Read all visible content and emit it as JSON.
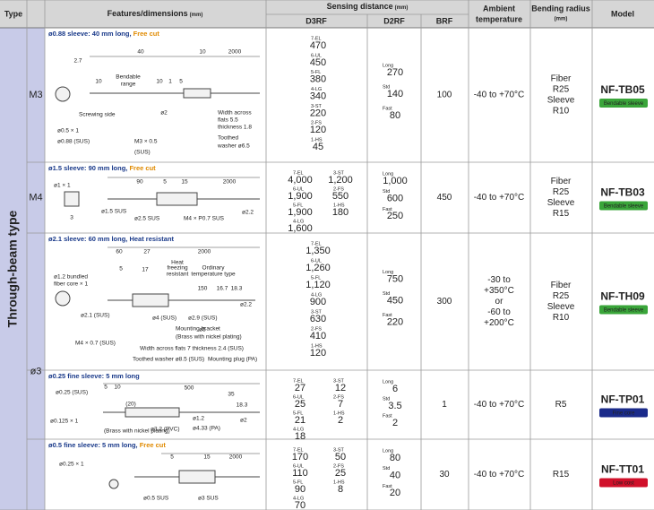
{
  "header": {
    "type": "Type",
    "features": "Features/dimensions",
    "features_unit": "(mm)",
    "sensing": "Sensing distance",
    "sensing_unit": "(mm)",
    "d3rf": "D3RF",
    "d2rf": "D2RF",
    "brf": "BRF",
    "ambient": [
      "Ambient",
      "temperature"
    ],
    "bending": [
      "Bending radius",
      "(mm)"
    ],
    "model": "Model"
  },
  "group_label": "Through-beam type",
  "rows": [
    {
      "size": "M3",
      "sleeve": "ø0.88 sleeve: 40 mm long, ",
      "tag": "Free cut",
      "labels": [
        "40",
        "10",
        "2000",
        "2.7",
        "10",
        "Bendable",
        "range",
        "10",
        "1",
        "5",
        "Screwing side",
        "ø2",
        "ø0.5 × 1",
        "ø0.88 (SUS)",
        "M3 × 0.5",
        "(SUS)",
        "Width across",
        "flats 5.5",
        "thickness 1.8",
        "Toothed",
        "washer ø6.5"
      ],
      "d3rf": [
        [
          [
            "7-EL",
            "470"
          ],
          [
            "6-UL",
            "450"
          ],
          [
            "5-FL",
            "380"
          ],
          [
            "4-LG",
            "340"
          ],
          [
            "3-ST",
            "220"
          ],
          [
            "2-FS",
            "120"
          ],
          [
            "1-HS",
            "45"
          ]
        ]
      ],
      "d2rf": [
        [
          "Long",
          "270"
        ],
        [
          "Std",
          "140"
        ],
        [
          "Fast",
          "80"
        ]
      ],
      "brf": "100",
      "ambient": [
        "-40 to +70°C"
      ],
      "bending": [
        "Fiber",
        "R25",
        "Sleeve",
        "R10"
      ],
      "model": "NF-TB05",
      "badge": "Bendable sleeve",
      "badge_color": "#3aa53a"
    },
    {
      "size": "M4",
      "sleeve": "ø1.5 sleeve: 90 mm long, ",
      "tag": "Free cut",
      "labels": [
        "ø1 × 1",
        "90",
        "5",
        "15",
        "2000",
        "3",
        "ø1.5 SUS",
        "ø2.5 SUS",
        "M4 × P0.7 SUS",
        "ø2.2"
      ],
      "d3rf": [
        [
          [
            "7-EL",
            "4,000"
          ],
          [
            "6-UL",
            "1,900"
          ],
          [
            "5-FL",
            "1,900"
          ],
          [
            "4-LG",
            "1,600"
          ]
        ],
        [
          [
            "3-ST",
            "1,200"
          ],
          [
            "2-FS",
            "550"
          ],
          [
            "1-HS",
            "180"
          ]
        ]
      ],
      "d2rf": [
        [
          "Long",
          "1,000"
        ],
        [
          "Std",
          "600"
        ],
        [
          "Fast",
          "250"
        ]
      ],
      "brf": "450",
      "ambient": [
        "-40 to +70°C"
      ],
      "bending": [
        "Fiber",
        "R25",
        "Sleeve",
        "R15"
      ],
      "model": "NF-TB03",
      "badge": "Bendable sleeve",
      "badge_color": "#3aa53a"
    },
    {
      "size": "ø3",
      "sleeve": "ø2.1 sleeve: 60 mm long, Heat resistant",
      "tag": null,
      "labels": [
        "60",
        "27",
        "2000",
        "ø1.2 bundled",
        "fiber core × 1",
        "5",
        "17",
        "Heat",
        "freezing",
        "resistant",
        "Ordinary",
        "temperature type",
        "150",
        "16.7",
        "18.3",
        "ø2.2",
        "ø2.1 (SUS)",
        "ø4 (SUS)",
        "ø2.9 (SUS)",
        "ø5",
        "Mounting bracket",
        "(Brass with nickel plating)",
        "M4 × 0.7 (SUS)",
        "Width across flats 7 thickness 2.4 (SUS)",
        "Toothed washer ø8.5 (SUS)",
        "Mounting plug (PA)"
      ],
      "d3rf": [
        [
          [
            "7-EL",
            "1,350"
          ],
          [
            "6-UL",
            "1,260"
          ],
          [
            "5-FL",
            "1,120"
          ],
          [
            "4-LG",
            "900"
          ],
          [
            "3-ST",
            "630"
          ],
          [
            "2-FS",
            "410"
          ],
          [
            "1-HS",
            "120"
          ]
        ]
      ],
      "d2rf": [
        [
          "Long",
          "750"
        ],
        [
          "Std",
          "450"
        ],
        [
          "Fast",
          "220"
        ]
      ],
      "brf": "300",
      "ambient": [
        "-30 to",
        "+350°C",
        "or",
        "-60 to",
        "+200°C"
      ],
      "bending": [
        "Fiber",
        "R25",
        "Sleeve",
        "R10"
      ],
      "model": "NF-TH09",
      "badge": "Bendable sleeve",
      "badge_color": "#3aa53a"
    },
    {
      "sleeve": "ø0.25 fine sleeve: 5 mm long",
      "tag": null,
      "labels": [
        "ø0.25 (SUS)",
        "5",
        "10",
        "500",
        "35",
        "(20)",
        "18.3",
        "ø0.125 × 1",
        "(Brass with nickel plating)",
        "ø3.2 (PVC)",
        "ø1.2",
        "ø4.33 (PA)",
        "ø2"
      ],
      "d3rf": [
        [
          [
            "7-EL",
            "27"
          ],
          [
            "6-UL",
            "25"
          ],
          [
            "5-FL",
            "21"
          ],
          [
            "4-LG",
            "18"
          ]
        ],
        [
          [
            "3-ST",
            "12"
          ],
          [
            "2-FS",
            "7"
          ],
          [
            "1-HS",
            "2"
          ]
        ]
      ],
      "d2rf": [
        [
          "Long",
          "6"
        ],
        [
          "Std",
          "3.5"
        ],
        [
          "Fast",
          "2"
        ]
      ],
      "brf": "1",
      "ambient": [
        "-40 to +70°C"
      ],
      "bending": [
        "R5"
      ],
      "model": "NF-TP01",
      "badge": "Fine core",
      "badge_color": "#1a2a8a"
    },
    {
      "sleeve": "ø0.5 fine sleeve: 5 mm long, ",
      "tag": "Free cut",
      "labels": [
        "5",
        "15",
        "2000",
        "ø0.25 × 1",
        "ø0.5 SUS",
        "ø3 SUS"
      ],
      "d3rf": [
        [
          [
            "7-EL",
            "170"
          ],
          [
            "6-UL",
            "110"
          ],
          [
            "5-FL",
            "90"
          ],
          [
            "4-LG",
            "70"
          ]
        ],
        [
          [
            "3-ST",
            "50"
          ],
          [
            "2-FS",
            "25"
          ],
          [
            "1-HS",
            "8"
          ]
        ]
      ],
      "d2rf": [
        [
          "Long",
          "80"
        ],
        [
          "Std",
          "40"
        ],
        [
          "Fast",
          "20"
        ]
      ],
      "brf": "30",
      "ambient": [
        "-40 to +70°C"
      ],
      "bending": [
        "R15"
      ],
      "model": "NF-TT01",
      "badge": "Low cost",
      "badge_color": "#d0102a"
    }
  ]
}
